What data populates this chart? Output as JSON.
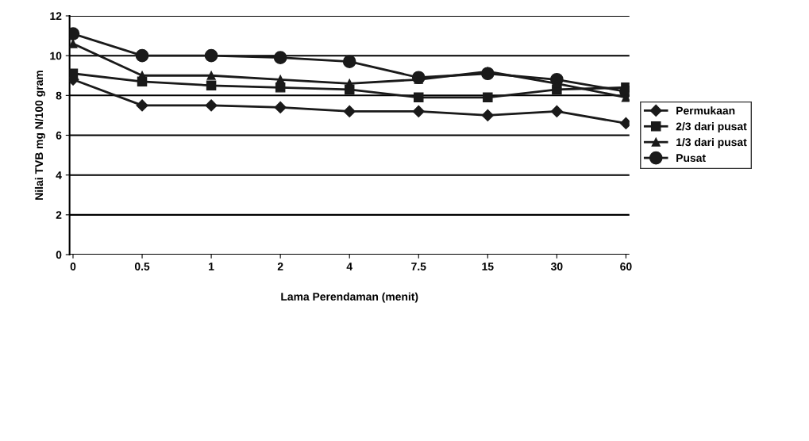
{
  "chart_data": {
    "type": "line",
    "xlabel": "Lama Perendaman (menit)",
    "ylabel": "Nilai TVB mg N/100 gram",
    "categories": [
      "0",
      "0.5",
      "1",
      "2",
      "4",
      "7.5",
      "15",
      "30",
      "60"
    ],
    "series": [
      {
        "name": "Permukaan",
        "color": "#1a1a1a",
        "marker": "diamond",
        "values": [
          8.8,
          7.5,
          7.5,
          7.4,
          7.2,
          7.2,
          7.0,
          7.2,
          6.6
        ]
      },
      {
        "name": "2/3 dari pusat",
        "color": "#1a1a1a",
        "marker": "square",
        "values": [
          9.1,
          8.7,
          8.5,
          8.4,
          8.3,
          7.9,
          7.9,
          8.3,
          8.4
        ]
      },
      {
        "name": "1/3 dari pusat",
        "color": "#1a1a1a",
        "marker": "triangle",
        "values": [
          10.6,
          9.0,
          9.0,
          8.8,
          8.6,
          8.8,
          9.2,
          8.6,
          7.9
        ]
      },
      {
        "name": "Pusat",
        "color": "#1a1a1a",
        "marker": "circle",
        "values": [
          11.1,
          10.0,
          10.0,
          9.9,
          9.7,
          8.9,
          9.1,
          8.8,
          8.2
        ]
      }
    ],
    "ylim": [
      0,
      12
    ],
    "yticks": [
      0,
      2,
      4,
      6,
      8,
      10,
      12
    ],
    "grid": "y",
    "legend": "right",
    "line_style": "solid"
  }
}
